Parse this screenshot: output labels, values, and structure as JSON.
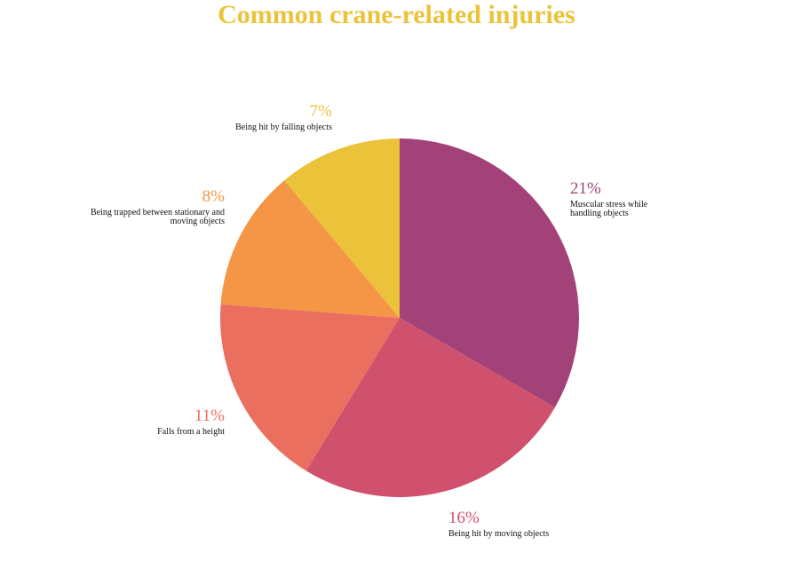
{
  "chart_data": {
    "type": "pie",
    "title": "Common crane-related injuries",
    "title_color": "#ebc33a",
    "start_angle_deg": 0,
    "direction": "clockwise",
    "slices": [
      {
        "category": "Muscular stress while handling objects",
        "value": 21,
        "value_label": "21%",
        "color": "#a34278"
      },
      {
        "category": "Being hit by moving objects",
        "value": 16,
        "value_label": "16%",
        "color": "#d0516d"
      },
      {
        "category": "Falls from a height",
        "value": 11,
        "value_label": "11%",
        "color": "#ea6f5e"
      },
      {
        "category": "Being trapped between stationary and moving objects",
        "value": 8,
        "value_label": "8%",
        "color": "#f49645"
      },
      {
        "category": "Being hit by falling objects",
        "value": 7,
        "value_label": "7%",
        "color": "#ebc33a"
      }
    ]
  }
}
